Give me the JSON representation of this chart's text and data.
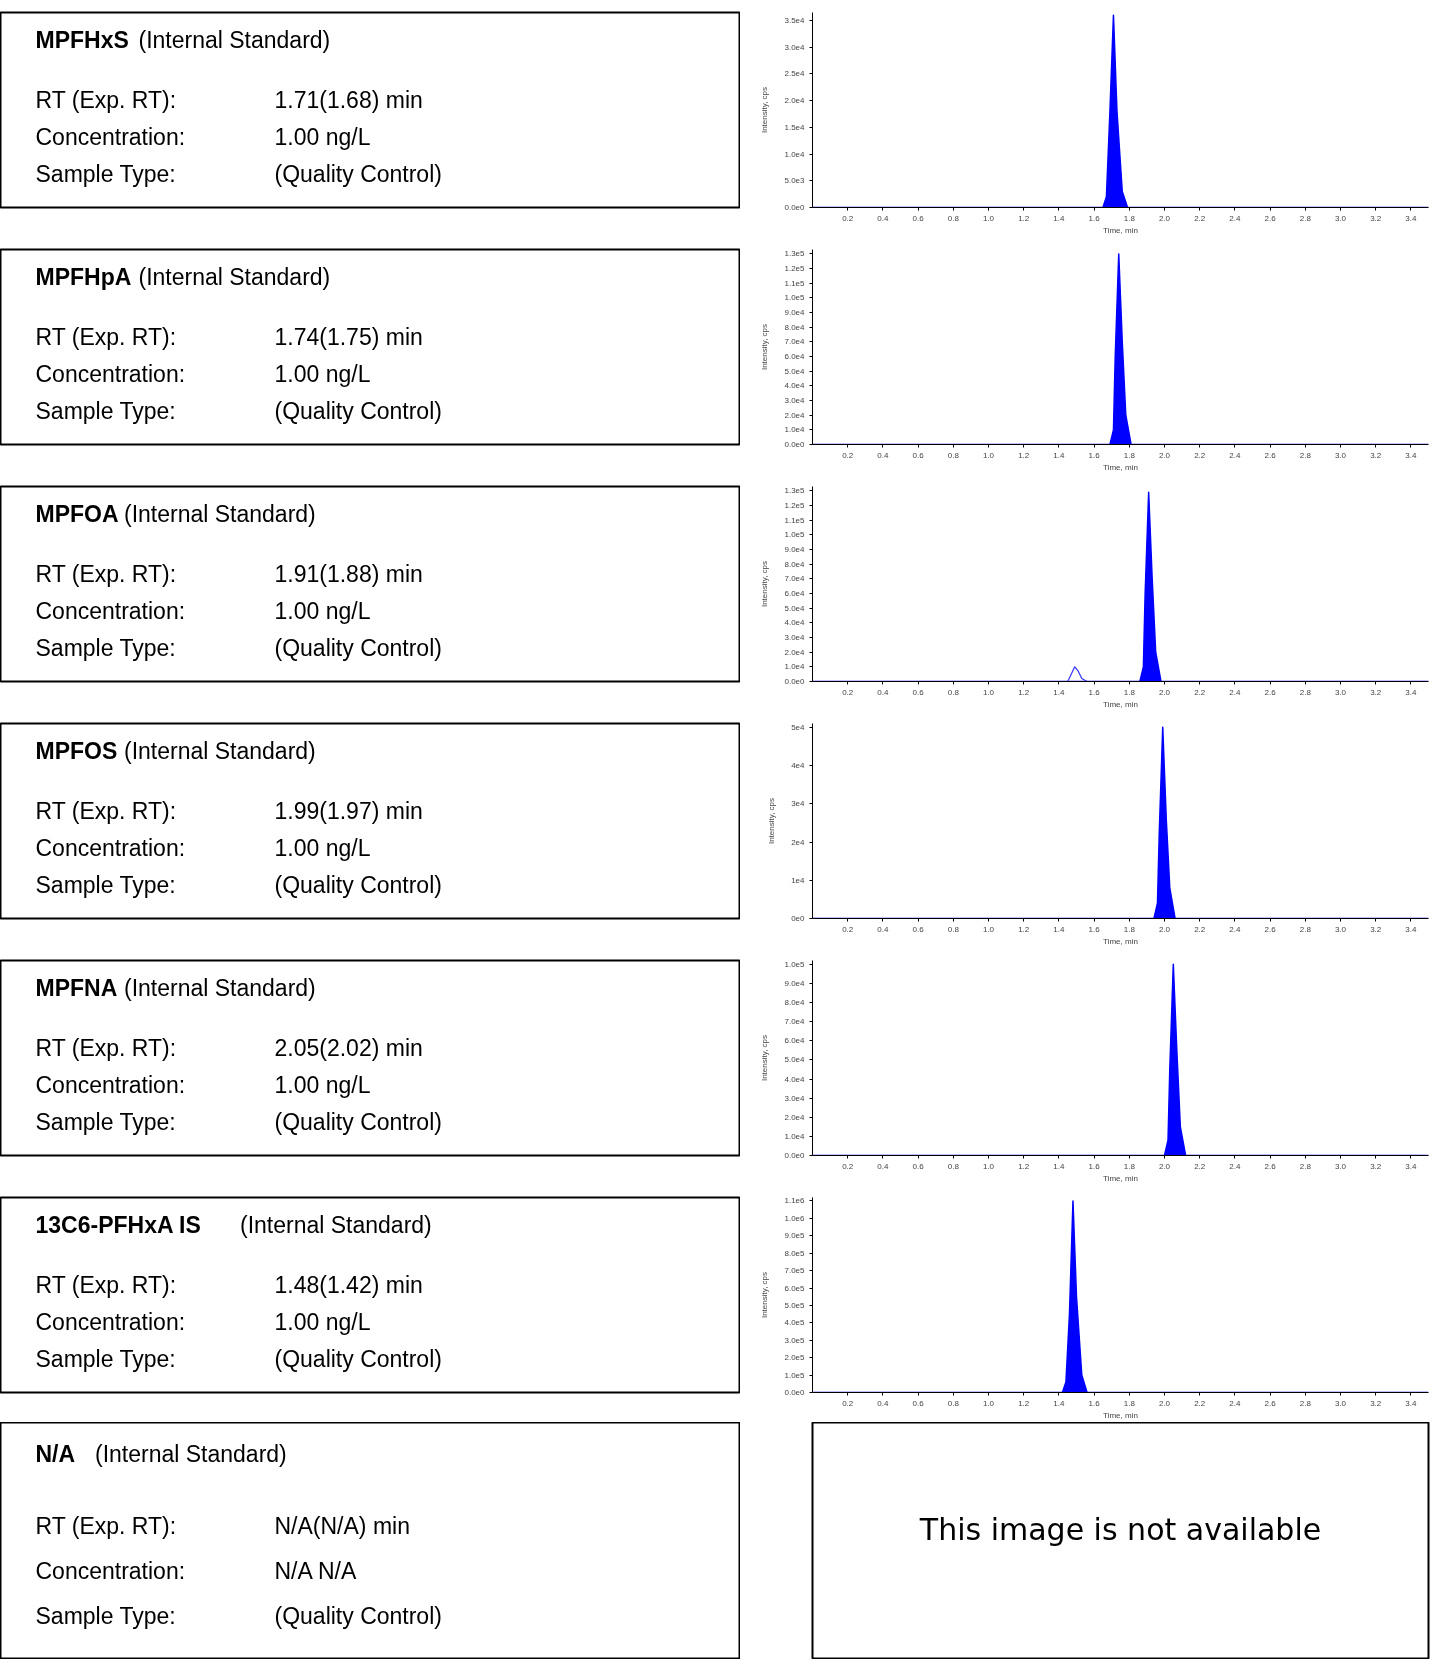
{
  "chart_data": [
    {
      "type": "other",
      "title": "MPFHxS",
      "subtitle": "(Internal Standard)",
      "annotations": [
        "RT (Exp. RT):",
        "1.71(1.68) min",
        "Concentration:",
        "1.00 ng/L",
        "Sample Type:",
        "(Quality Control)"
      ]
    },
    {
      "type": "area",
      "xlabel": "Time, min",
      "ylabel": "Intensity, cps",
      "xlim": [
        0,
        3.5
      ],
      "xticks": [
        0.2,
        0.4,
        0.6,
        0.8,
        {
          "value": 1,
          "label": "1.0"
        },
        1.2,
        1.4,
        1.6,
        1.8,
        {
          "value": 2,
          "label": "2.0"
        },
        2.2,
        2.4,
        2.6,
        2.8,
        {
          "value": 3,
          "label": "3.0"
        },
        3.2,
        3.4
      ],
      "ylim": [
        0,
        36500
      ],
      "yticks": [
        {
          "value": 0,
          "label": "0.0e0"
        },
        {
          "value": 5000,
          "label": "5.0e3"
        },
        {
          "value": 10000,
          "label": "1.0e4"
        },
        {
          "value": 15000,
          "label": "1.5e4"
        },
        {
          "value": 20000,
          "label": "2.0e4"
        },
        {
          "value": 25000,
          "label": "2.5e4"
        },
        {
          "value": 30000,
          "label": "3.0e4"
        },
        {
          "value": 35000,
          "label": "3.5e4"
        }
      ],
      "grid": false,
      "series": [
        {
          "color": "#0000ff",
          "x": [
            0,
            1.65,
            1.67,
            1.69,
            1.71,
            1.73,
            1.76,
            1.79,
            3.5
          ],
          "values": [
            0,
            0,
            2000,
            18000,
            36000,
            18000,
            3000,
            0,
            0
          ]
        }
      ]
    },
    {
      "type": "other",
      "title": "MPFHpA",
      "subtitle": "(Internal Standard)",
      "annotations": [
        "RT (Exp. RT):",
        "1.74(1.75) min",
        "Concentration:",
        "1.00 ng/L",
        "Sample Type:",
        "(Quality Control)"
      ]
    },
    {
      "type": "area",
      "xlabel": "Time, min",
      "ylabel": "Intensity, cps",
      "xlim": [
        0,
        3.5
      ],
      "xticks": [
        0.2,
        0.4,
        0.6,
        0.8,
        {
          "value": 1,
          "label": "1.0"
        },
        1.2,
        1.4,
        1.6,
        1.8,
        {
          "value": 2,
          "label": "2.0"
        },
        2.2,
        2.4,
        2.6,
        2.8,
        {
          "value": 3,
          "label": "3.0"
        },
        3.2,
        3.4
      ],
      "ylim": [
        0,
        133000
      ],
      "yticks": [
        {
          "value": 0,
          "label": "0.0e0"
        },
        {
          "value": 10000,
          "label": "1.0e4"
        },
        {
          "value": 20000,
          "label": "2.0e4"
        },
        {
          "value": 30000,
          "label": "3.0e4"
        },
        {
          "value": 40000,
          "label": "4.0e4"
        },
        {
          "value": 50000,
          "label": "5.0e4"
        },
        {
          "value": 60000,
          "label": "6.0e4"
        },
        {
          "value": 70000,
          "label": "7.0e4"
        },
        {
          "value": 80000,
          "label": "8.0e4"
        },
        {
          "value": 90000,
          "label": "9.0e4"
        },
        {
          "value": 100000,
          "label": "1.0e5"
        },
        {
          "value": 110000,
          "label": "1.1e5"
        },
        {
          "value": 120000,
          "label": "1.2e5"
        },
        {
          "value": 130000,
          "label": "1.3e5"
        }
      ],
      "grid": false,
      "series": [
        {
          "color": "#0000ff",
          "x": [
            0,
            1.69,
            1.71,
            1.72,
            1.74,
            1.76,
            1.78,
            1.81,
            3.5
          ],
          "values": [
            0,
            0,
            10000,
            60000,
            130000,
            70000,
            20000,
            0,
            0
          ]
        }
      ]
    },
    {
      "type": "other",
      "title": "MPFOA",
      "subtitle": "(Internal Standard)",
      "annotations": [
        "RT (Exp. RT):",
        "1.91(1.88) min",
        "Concentration:",
        "1.00 ng/L",
        "Sample Type:",
        "(Quality Control)"
      ]
    },
    {
      "type": "area",
      "xlabel": "Time, min",
      "ylabel": "Intensity, cps",
      "xlim": [
        0,
        3.5
      ],
      "xticks": [
        0.2,
        0.4,
        0.6,
        0.8,
        {
          "value": 1,
          "label": "1.0"
        },
        1.2,
        1.4,
        1.6,
        1.8,
        {
          "value": 2,
          "label": "2.0"
        },
        2.2,
        2.4,
        2.6,
        2.8,
        {
          "value": 3,
          "label": "3.0"
        },
        3.2,
        3.4
      ],
      "ylim": [
        0,
        133000
      ],
      "yticks": [
        {
          "value": 0,
          "label": "0.0e0"
        },
        {
          "value": 10000,
          "label": "1.0e4"
        },
        {
          "value": 20000,
          "label": "2.0e4"
        },
        {
          "value": 30000,
          "label": "3.0e4"
        },
        {
          "value": 40000,
          "label": "4.0e4"
        },
        {
          "value": 50000,
          "label": "5.0e4"
        },
        {
          "value": 60000,
          "label": "6.0e4"
        },
        {
          "value": 70000,
          "label": "7.0e4"
        },
        {
          "value": 80000,
          "label": "8.0e4"
        },
        {
          "value": 90000,
          "label": "9.0e4"
        },
        {
          "value": 100000,
          "label": "1.0e5"
        },
        {
          "value": 110000,
          "label": "1.1e5"
        },
        {
          "value": 120000,
          "label": "1.2e5"
        },
        {
          "value": 130000,
          "label": "1.3e5"
        }
      ],
      "grid": false,
      "series": [
        {
          "color": "#0000ff",
          "x": [
            0,
            1.86,
            1.88,
            1.89,
            1.91,
            1.93,
            1.95,
            1.98,
            3.5
          ],
          "values": [
            0,
            0,
            10000,
            60000,
            129000,
            70000,
            20000,
            0,
            0
          ]
        },
        {
          "type": "line",
          "color": "#3333ff",
          "x": [
            1.45,
            1.47,
            1.49,
            1.51,
            1.53,
            1.56
          ],
          "values": [
            0,
            5000,
            10000,
            7000,
            2000,
            0
          ]
        }
      ]
    },
    {
      "type": "other",
      "title": "MPFOS",
      "subtitle": "(Internal Standard)",
      "annotations": [
        "RT (Exp. RT):",
        "1.99(1.97) min",
        "Concentration:",
        "1.00 ng/L",
        "Sample Type:",
        "(Quality Control)"
      ]
    },
    {
      "type": "area",
      "xlabel": "Time, min",
      "ylabel": "Intensity, cps",
      "xlim": [
        0,
        3.5
      ],
      "xticks": [
        0.2,
        0.4,
        0.6,
        0.8,
        {
          "value": 1,
          "label": "1.0"
        },
        1.2,
        1.4,
        1.6,
        1.8,
        {
          "value": 2,
          "label": "2.0"
        },
        2.2,
        2.4,
        2.6,
        2.8,
        {
          "value": 3,
          "label": "3.0"
        },
        3.2,
        3.4
      ],
      "ylim": [
        0,
        51000
      ],
      "yticks": [
        {
          "value": 0,
          "label": "0e0"
        },
        {
          "value": 10000,
          "label": "1e4"
        },
        {
          "value": 20000,
          "label": "2e4"
        },
        {
          "value": 30000,
          "label": "3e4"
        },
        {
          "value": 40000,
          "label": "4e4"
        },
        {
          "value": 50000,
          "label": "5e4"
        }
      ],
      "grid": false,
      "series": [
        {
          "color": "#0000ff",
          "x": [
            0,
            1.94,
            1.96,
            1.97,
            1.99,
            2.01,
            2.03,
            2.06,
            3.5
          ],
          "values": [
            0,
            0,
            4000,
            22000,
            50000,
            26000,
            8000,
            0,
            0
          ]
        }
      ]
    },
    {
      "type": "other",
      "title": "MPFNA",
      "subtitle": "(Internal Standard)",
      "annotations": [
        "RT (Exp. RT):",
        "2.05(2.02) min",
        "Concentration:",
        "1.00 ng/L",
        "Sample Type:",
        "(Quality Control)"
      ]
    },
    {
      "type": "area",
      "xlabel": "Time, min",
      "ylabel": "Intensity, cps",
      "xlim": [
        0,
        3.5
      ],
      "xticks": [
        0.2,
        0.4,
        0.6,
        0.8,
        {
          "value": 1,
          "label": "1.0"
        },
        1.2,
        1.4,
        1.6,
        1.8,
        {
          "value": 2,
          "label": "2.0"
        },
        2.2,
        2.4,
        2.6,
        2.8,
        {
          "value": 3,
          "label": "3.0"
        },
        3.2,
        3.4
      ],
      "ylim": [
        0,
        102000
      ],
      "yticks": [
        {
          "value": 0,
          "label": "0.0e0"
        },
        {
          "value": 10000,
          "label": "1.0e4"
        },
        {
          "value": 20000,
          "label": "2.0e4"
        },
        {
          "value": 30000,
          "label": "3.0e4"
        },
        {
          "value": 40000,
          "label": "4.0e4"
        },
        {
          "value": 50000,
          "label": "5.0e4"
        },
        {
          "value": 60000,
          "label": "6.0e4"
        },
        {
          "value": 70000,
          "label": "7.0e4"
        },
        {
          "value": 80000,
          "label": "8.0e4"
        },
        {
          "value": 90000,
          "label": "9.0e4"
        },
        {
          "value": 100000,
          "label": "1.0e5"
        }
      ],
      "grid": false,
      "series": [
        {
          "color": "#0000ff",
          "x": [
            0,
            2.0,
            2.02,
            2.03,
            2.05,
            2.07,
            2.09,
            2.12,
            3.5
          ],
          "values": [
            0,
            0,
            8000,
            45000,
            100000,
            55000,
            15000,
            0,
            0
          ]
        }
      ]
    },
    {
      "type": "other",
      "title": "13C6-PFHxA IS",
      "subtitle": "(Internal Standard)",
      "annotations": [
        "RT (Exp. RT):",
        "1.48(1.42) min",
        "Concentration:",
        "1.00 ng/L",
        "Sample Type:",
        "(Quality Control)"
      ]
    },
    {
      "type": "area",
      "xlabel": "Time, min",
      "ylabel": "Intensity, cps",
      "xlim": [
        0,
        3.5
      ],
      "xticks": [
        0.2,
        0.4,
        0.6,
        0.8,
        {
          "value": 1,
          "label": "1.0"
        },
        1.2,
        1.4,
        1.6,
        1.8,
        {
          "value": 2,
          "label": "2.0"
        },
        2.2,
        2.4,
        2.6,
        2.8,
        {
          "value": 3,
          "label": "3.0"
        },
        3.2,
        3.4
      ],
      "ylim": [
        0,
        1120000
      ],
      "yticks": [
        {
          "value": 0,
          "label": "0.0e0"
        },
        {
          "value": 100000,
          "label": "1.0e5"
        },
        {
          "value": 200000,
          "label": "2.0e5"
        },
        {
          "value": 300000,
          "label": "3.0e5"
        },
        {
          "value": 400000,
          "label": "4.0e5"
        },
        {
          "value": 500000,
          "label": "5.0e5"
        },
        {
          "value": 600000,
          "label": "6.0e5"
        },
        {
          "value": 700000,
          "label": "7.0e5"
        },
        {
          "value": 800000,
          "label": "8.0e5"
        },
        {
          "value": 900000,
          "label": "9.0e5"
        },
        {
          "value": 1000000,
          "label": "1.0e6"
        },
        {
          "value": 1100000,
          "label": "1.1e6"
        }
      ],
      "grid": false,
      "series": [
        {
          "color": "#0000ff",
          "x": [
            0,
            1.42,
            1.44,
            1.46,
            1.48,
            1.5,
            1.53,
            1.56,
            3.5
          ],
          "values": [
            0,
            0,
            60000,
            450000,
            1100000,
            550000,
            100000,
            0,
            0
          ]
        }
      ]
    },
    {
      "type": "other",
      "title": "N/A",
      "subtitle": "(Internal Standard)",
      "annotations": [
        "RT (Exp. RT):",
        "N/A(N/A) min",
        "Concentration:",
        "N/A N/A",
        "Sample Type:",
        "(Quality Control)"
      ]
    },
    {
      "type": "other",
      "annotations": [
        "This image is not available"
      ]
    }
  ]
}
